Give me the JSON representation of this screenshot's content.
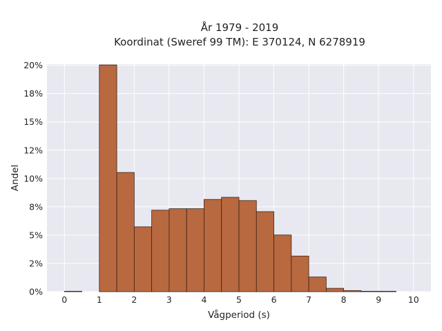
{
  "chart_data": {
    "type": "bar",
    "title_lines": [
      "År 1979 - 2019",
      "Koordinat (Sweref 99 TM): E 370124, N 6278919"
    ],
    "xlabel": "Vågperiod (s)",
    "ylabel": "Andel",
    "xlim": [
      -0.5,
      10.5
    ],
    "ylim": [
      0,
      0.201
    ],
    "x_ticks": [
      0,
      1,
      2,
      3,
      4,
      5,
      6,
      7,
      8,
      9,
      10
    ],
    "x_tick_labels": [
      "0",
      "1",
      "2",
      "3",
      "4",
      "5",
      "6",
      "7",
      "8",
      "9",
      "10"
    ],
    "y_ticks": [
      0,
      0.025,
      0.05,
      0.075,
      0.1,
      0.125,
      0.15,
      0.175,
      0.2
    ],
    "y_tick_labels": [
      "0%",
      "2%",
      "5%",
      "8%",
      "10%",
      "12%",
      "15%",
      "18%",
      "20%"
    ],
    "bin_width": 0.5,
    "bin_starts": [
      0,
      0.5,
      1,
      1.5,
      2,
      2.5,
      3,
      3.5,
      4,
      4.5,
      5,
      5.5,
      6,
      6.5,
      7,
      7.5,
      8,
      8.5,
      9,
      9.5
    ],
    "values": [
      0.0004,
      0,
      0.2003,
      0.1053,
      0.0573,
      0.072,
      0.0733,
      0.0733,
      0.0815,
      0.0834,
      0.0805,
      0.0707,
      0.0501,
      0.0315,
      0.013,
      0.003,
      0.001,
      0.0004,
      0.0004,
      0
    ],
    "grid": true,
    "colors": {
      "bar_fill": "#b8693f",
      "bar_edge": "#3a2418",
      "plot_background": "#e8e8f0",
      "grid": "#ffffff"
    }
  }
}
